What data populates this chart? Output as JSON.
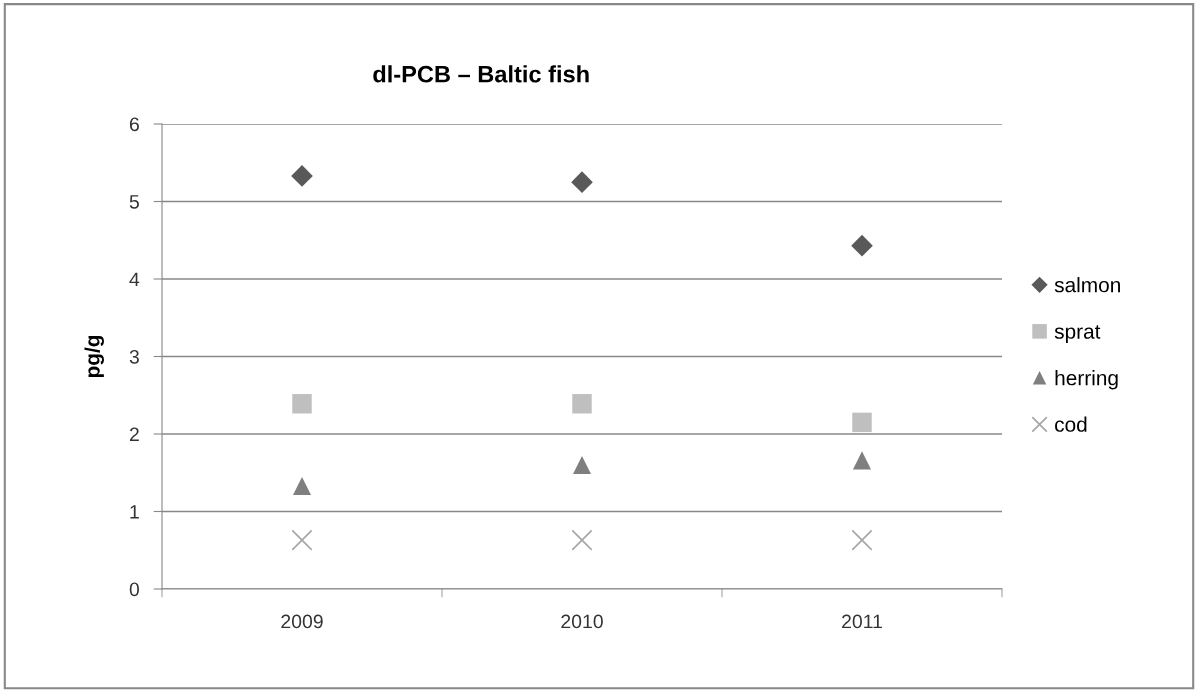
{
  "chart_data": {
    "type": "scatter",
    "title": "dl-PCB – Baltic fish",
    "ylabel": "pg/g",
    "categories": [
      "2009",
      "2010",
      "2011"
    ],
    "series": [
      {
        "name": "salmon",
        "color": "#595959",
        "marker": "diamond",
        "values": [
          5.33,
          5.25,
          4.43
        ]
      },
      {
        "name": "sprat",
        "color": "#bfbfbf",
        "marker": "square",
        "values": [
          2.39,
          2.39,
          2.15
        ]
      },
      {
        "name": "herring",
        "color": "#7f7f7f",
        "marker": "triangle",
        "values": [
          1.33,
          1.6,
          1.66
        ]
      },
      {
        "name": "cod",
        "color": "#a6a6a6",
        "marker": "cross",
        "values": [
          0.63,
          0.63,
          0.63
        ]
      }
    ],
    "ylim": [
      0,
      6
    ],
    "yticks": [
      0,
      1,
      2,
      3,
      4,
      5,
      6
    ],
    "grid": "y",
    "legend": "right"
  }
}
